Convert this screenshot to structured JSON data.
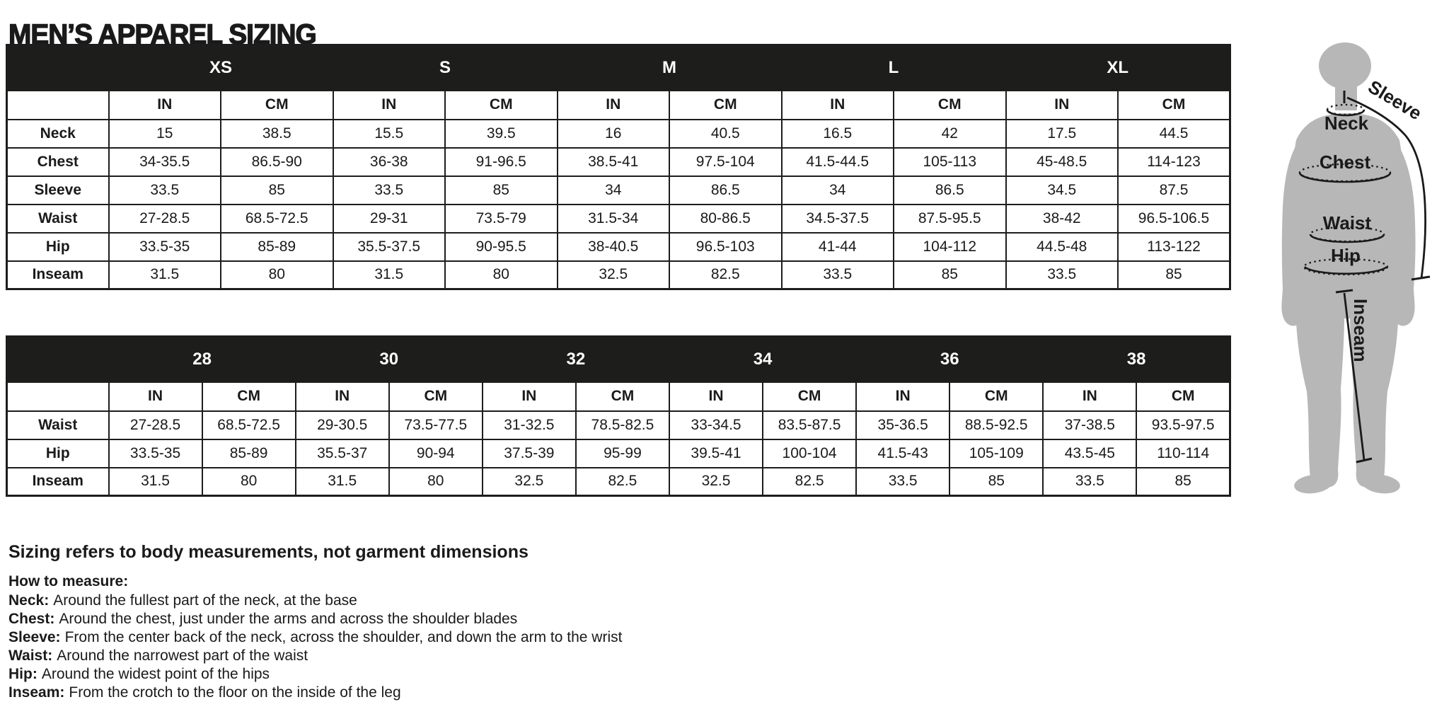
{
  "page_title": "MEN’S APPAREL SIZING",
  "colors": {
    "header_bg": "#1d1d1b",
    "header_text": "#ffffff",
    "border": "#1d1d1b",
    "body_text": "#1a1a1a",
    "figure_gray": "#b7b7b7"
  },
  "size_table": {
    "sizes": [
      "XS",
      "S",
      "M",
      "L",
      "XL"
    ],
    "unit_headers": [
      "IN",
      "CM"
    ],
    "rows": [
      {
        "label": "Neck",
        "values": [
          "15",
          "38.5",
          "15.5",
          "39.5",
          "16",
          "40.5",
          "16.5",
          "42",
          "17.5",
          "44.5"
        ]
      },
      {
        "label": "Chest",
        "values": [
          "34-35.5",
          "86.5-90",
          "36-38",
          "91-96.5",
          "38.5-41",
          "97.5-104",
          "41.5-44.5",
          "105-113",
          "45-48.5",
          "114-123"
        ]
      },
      {
        "label": "Sleeve",
        "values": [
          "33.5",
          "85",
          "33.5",
          "85",
          "34",
          "86.5",
          "34",
          "86.5",
          "34.5",
          "87.5"
        ]
      },
      {
        "label": "Waist",
        "values": [
          "27-28.5",
          "68.5-72.5",
          "29-31",
          "73.5-79",
          "31.5-34",
          "80-86.5",
          "34.5-37.5",
          "87.5-95.5",
          "38-42",
          "96.5-106.5"
        ]
      },
      {
        "label": "Hip",
        "values": [
          "33.5-35",
          "85-89",
          "35.5-37.5",
          "90-95.5",
          "38-40.5",
          "96.5-103",
          "41-44",
          "104-112",
          "44.5-48",
          "113-122"
        ]
      },
      {
        "label": "Inseam",
        "values": [
          "31.5",
          "80",
          "31.5",
          "80",
          "32.5",
          "82.5",
          "33.5",
          "85",
          "33.5",
          "85"
        ]
      }
    ]
  },
  "waist_table": {
    "sizes": [
      "28",
      "30",
      "32",
      "34",
      "36",
      "38"
    ],
    "unit_headers": [
      "IN",
      "CM"
    ],
    "rows": [
      {
        "label": "Waist",
        "values": [
          "27-28.5",
          "68.5-72.5",
          "29-30.5",
          "73.5-77.5",
          "31-32.5",
          "78.5-82.5",
          "33-34.5",
          "83.5-87.5",
          "35-36.5",
          "88.5-92.5",
          "37-38.5",
          "93.5-97.5"
        ]
      },
      {
        "label": "Hip",
        "values": [
          "33.5-35",
          "85-89",
          "35.5-37",
          "90-94",
          "37.5-39",
          "95-99",
          "39.5-41",
          "100-104",
          "41.5-43",
          "105-109",
          "43.5-45",
          "110-114"
        ]
      },
      {
        "label": "Inseam",
        "values": [
          "31.5",
          "80",
          "31.5",
          "80",
          "32.5",
          "82.5",
          "32.5",
          "82.5",
          "33.5",
          "85",
          "33.5",
          "85"
        ]
      }
    ]
  },
  "notes": {
    "heading": "Sizing refers to body measurements, not garment dimensions",
    "subheading": "How to measure:",
    "items": [
      {
        "term": "Neck:",
        "description": "Around the fullest part of the neck, at the base"
      },
      {
        "term": "Chest:",
        "description": "Around the chest, just under the arms and across the shoulder blades"
      },
      {
        "term": "Sleeve:",
        "description": "From the center back of the neck, across the shoulder, and down the arm to the wrist"
      },
      {
        "term": "Waist:",
        "description": "Around the narrowest part of the waist"
      },
      {
        "term": "Hip:",
        "description": "Around the widest point of the hips"
      },
      {
        "term": "Inseam:",
        "description": "From the crotch to the floor on the inside of the leg"
      }
    ]
  },
  "figure": {
    "labels": {
      "sleeve": "Sleeve",
      "neck": "Neck",
      "chest": "Chest",
      "waist": "Waist",
      "hip": "Hip",
      "inseam": "Inseam"
    }
  }
}
